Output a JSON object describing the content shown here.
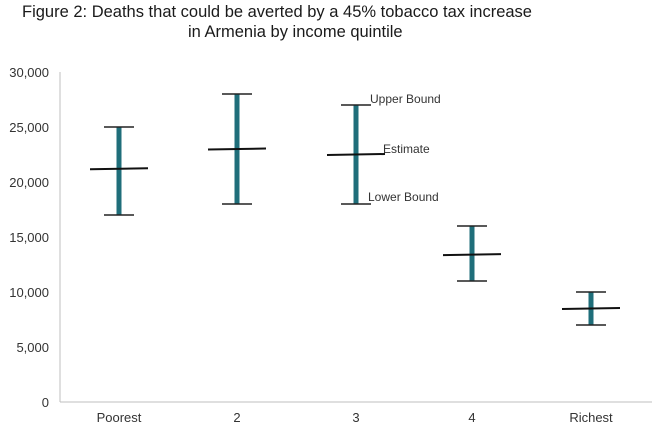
{
  "chart_data": {
    "type": "error-bar",
    "title_line1": "Figure 2: Deaths that could be averted by a 45% tobacco tax increase",
    "title_line2": "in Armenia by income quintile",
    "categories": [
      "Poorest",
      "2",
      "3",
      "4",
      "Richest"
    ],
    "estimate": [
      21200,
      23000,
      22500,
      13400,
      8500
    ],
    "upper": [
      25000,
      28000,
      27000,
      16000,
      10000
    ],
    "lower": [
      17000,
      18000,
      18000,
      11000,
      7000
    ],
    "ylim": [
      0,
      30000
    ],
    "yticks": [
      "0",
      "5,000",
      "10,000",
      "15,000",
      "20,000",
      "25,000",
      "30,000"
    ],
    "annotations": {
      "upper": "Upper Bound",
      "estimate": "Estimate",
      "lower": "Lower Bound"
    },
    "colors": {
      "bar": "#1f6e7a",
      "estimate": "#111111",
      "axis": "#bfbfbf"
    }
  }
}
